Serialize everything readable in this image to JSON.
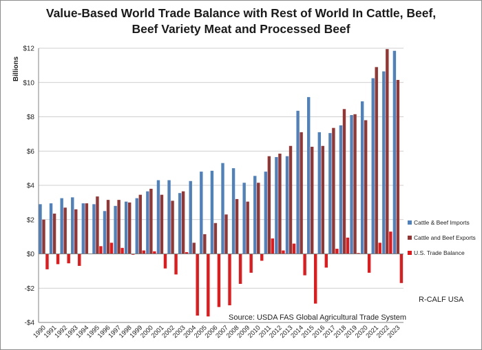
{
  "title": {
    "line1": "Value-Based World Trade Balance with Rest of World In Cattle, Beef,",
    "line2": "Beef Variety Meat and Processed Beef"
  },
  "colors": {
    "imports": "#4f81bd",
    "exports": "#943634",
    "balance": "#e31a1c"
  },
  "chart_data": {
    "type": "bar",
    "title": "Value-Based World Trade Balance with Rest of World In Cattle, Beef, Beef Variety Meat and Processed Beef",
    "ylabel": "Billions",
    "ylim": [
      -4,
      12
    ],
    "yticks": [
      -4,
      -2,
      0,
      2,
      4,
      6,
      8,
      10,
      12
    ],
    "ytick_labels": [
      "-$4",
      "-$2",
      "$0",
      "$2",
      "$4",
      "$6",
      "$8",
      "$10",
      "$12"
    ],
    "grid": true,
    "legend_position": "right",
    "categories": [
      "1990",
      "1991",
      "1992",
      "1993",
      "1994",
      "1995",
      "1996",
      "1997",
      "1998",
      "1999",
      "2000",
      "2001",
      "2002",
      "2003",
      "2004",
      "2005",
      "2006",
      "2007",
      "2008",
      "2009",
      "2010",
      "2011",
      "2012",
      "2013",
      "2014",
      "2015",
      "2016",
      "2017",
      "2018",
      "2019",
      "2020",
      "2021",
      "2022",
      "2023"
    ],
    "series": [
      {
        "name": "Cattle & Beef Imports",
        "values": [
          2.9,
          2.95,
          3.25,
          3.3,
          2.95,
          2.9,
          2.5,
          2.8,
          3.05,
          3.25,
          3.65,
          4.3,
          4.3,
          3.55,
          4.25,
          4.8,
          4.85,
          5.3,
          5.0,
          4.15,
          4.55,
          4.8,
          5.65,
          5.7,
          8.35,
          9.15,
          7.1,
          7.05,
          7.5,
          8.1,
          8.9,
          10.25,
          10.65,
          11.85
        ]
      },
      {
        "name": "Cattle and Beef Exports",
        "values": [
          2.0,
          2.35,
          2.7,
          2.6,
          2.95,
          3.35,
          3.15,
          3.15,
          3.0,
          3.45,
          3.8,
          3.45,
          3.1,
          3.65,
          0.65,
          1.15,
          1.8,
          2.3,
          3.2,
          3.05,
          4.15,
          5.7,
          5.85,
          6.3,
          7.1,
          6.25,
          6.3,
          7.35,
          8.45,
          8.15,
          7.8,
          10.9,
          11.95,
          10.15
        ]
      },
      {
        "name": "U.S. Trade Balance",
        "values": [
          -0.9,
          -0.6,
          -0.55,
          -0.7,
          0.0,
          0.45,
          0.65,
          0.35,
          -0.05,
          0.2,
          0.15,
          -0.85,
          -1.2,
          0.1,
          -3.6,
          -3.65,
          -3.1,
          -3.0,
          -1.75,
          -1.1,
          -0.4,
          0.9,
          0.2,
          0.6,
          -1.25,
          -2.9,
          -0.8,
          0.3,
          0.95,
          0.05,
          -1.1,
          0.65,
          1.3,
          -1.7
        ]
      }
    ],
    "annotations": [
      "R-CALF USA",
      "Source:  USDA FAS Global Agricultural Trade System"
    ]
  }
}
